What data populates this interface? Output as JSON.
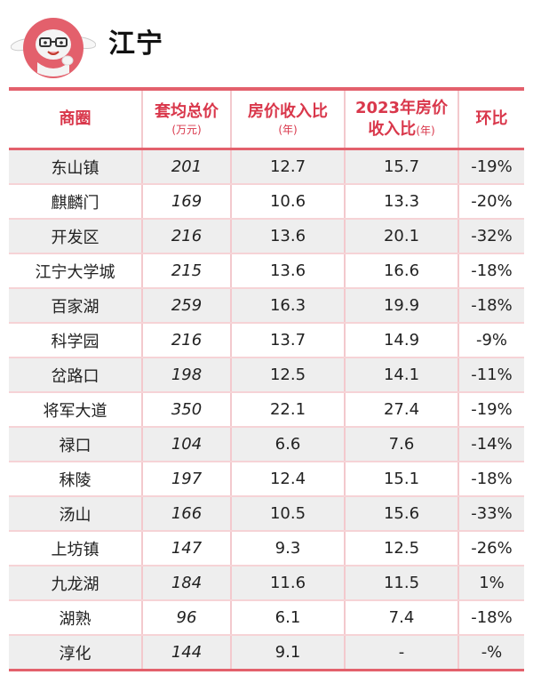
{
  "header": {
    "title": "江宁",
    "mascot_icon": "cartoon-rabbit-mascot-icon",
    "accent_color": "#e3606c"
  },
  "table": {
    "columns": {
      "district": "商圈",
      "avg_total_price": "套均总价",
      "avg_total_price_unit": "(万元)",
      "price_income_ratio": "房价收入比",
      "price_income_ratio_unit": "(年)",
      "ratio_2023_line1": "2023年房价",
      "ratio_2023_line2": "收入比",
      "ratio_2023_unit": "(年)",
      "change": "环比"
    },
    "rows": [
      {
        "district": "东山镇",
        "avg_total_price": "201",
        "ratio": "12.7",
        "ratio_2023": "15.7",
        "change": "-19%"
      },
      {
        "district": "麒麟门",
        "avg_total_price": "169",
        "ratio": "10.6",
        "ratio_2023": "13.3",
        "change": "-20%"
      },
      {
        "district": "开发区",
        "avg_total_price": "216",
        "ratio": "13.6",
        "ratio_2023": "20.1",
        "change": "-32%"
      },
      {
        "district": "江宁大学城",
        "avg_total_price": "215",
        "ratio": "13.6",
        "ratio_2023": "16.6",
        "change": "-18%"
      },
      {
        "district": "百家湖",
        "avg_total_price": "259",
        "ratio": "16.3",
        "ratio_2023": "19.9",
        "change": "-18%"
      },
      {
        "district": "科学园",
        "avg_total_price": "216",
        "ratio": "13.7",
        "ratio_2023": "14.9",
        "change": "-9%"
      },
      {
        "district": "岔路口",
        "avg_total_price": "198",
        "ratio": "12.5",
        "ratio_2023": "14.1",
        "change": "-11%"
      },
      {
        "district": "将军大道",
        "avg_total_price": "350",
        "ratio": "22.1",
        "ratio_2023": "27.4",
        "change": "-19%"
      },
      {
        "district": "禄口",
        "avg_total_price": "104",
        "ratio": "6.6",
        "ratio_2023": "7.6",
        "change": "-14%"
      },
      {
        "district": "秣陵",
        "avg_total_price": "197",
        "ratio": "12.4",
        "ratio_2023": "15.1",
        "change": "-18%"
      },
      {
        "district": "汤山",
        "avg_total_price": "166",
        "ratio": "10.5",
        "ratio_2023": "15.6",
        "change": "-33%"
      },
      {
        "district": "上坊镇",
        "avg_total_price": "147",
        "ratio": "9.3",
        "ratio_2023": "12.5",
        "change": "-26%"
      },
      {
        "district": "九龙湖",
        "avg_total_price": "184",
        "ratio": "11.6",
        "ratio_2023": "11.5",
        "change": "1%"
      },
      {
        "district": "湖熟",
        "avg_total_price": "96",
        "ratio": "6.1",
        "ratio_2023": "7.4",
        "change": "-18%"
      },
      {
        "district": "淳化",
        "avg_total_price": "144",
        "ratio": "9.1",
        "ratio_2023": "-",
        "change": "-%"
      }
    ]
  }
}
